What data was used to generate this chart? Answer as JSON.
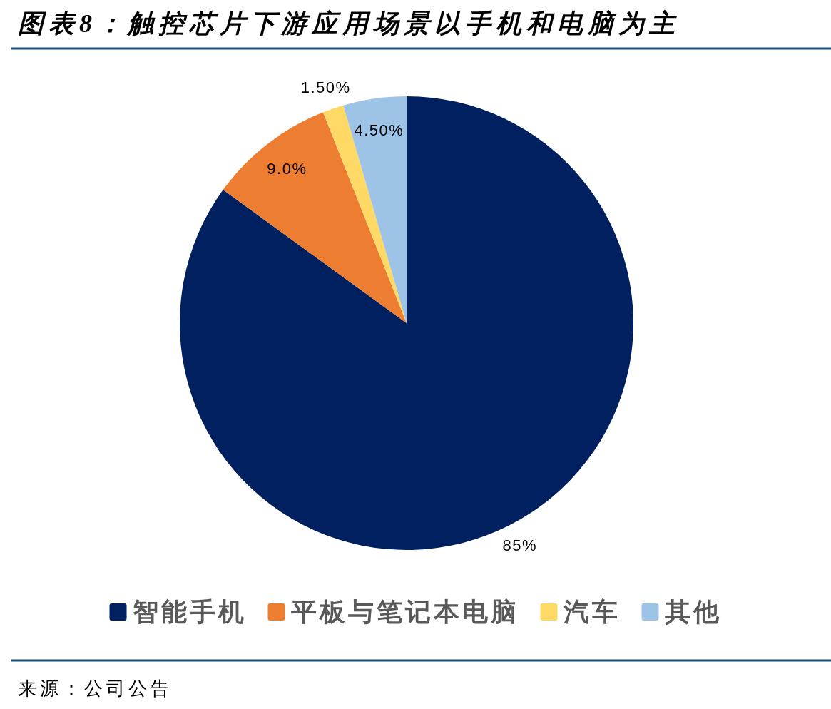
{
  "chart_data": {
    "type": "pie",
    "title": "图表8：触控芯片下游应用场景以手机和电脑为主",
    "categories": [
      "智能手机",
      "平板与笔记本电脑",
      "汽车",
      "其他"
    ],
    "values": [
      85,
      9.0,
      1.5,
      4.5
    ],
    "colors": [
      "#002060",
      "#ed7d31",
      "#ffd966",
      "#9dc3e6"
    ],
    "value_labels": [
      "85%",
      "9.0%",
      "1.50%",
      "4.50%"
    ],
    "legend": "bottom",
    "annotations": [
      "来源：公司公告"
    ]
  }
}
